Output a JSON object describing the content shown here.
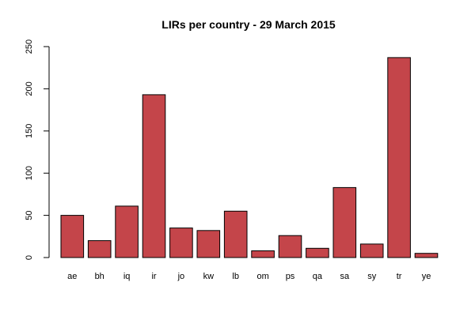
{
  "chart_data": {
    "type": "bar",
    "title": "LIRs per country - 29 March 2015",
    "xlabel": "",
    "ylabel": "",
    "categories": [
      "ae",
      "bh",
      "iq",
      "ir",
      "jo",
      "kw",
      "lb",
      "om",
      "ps",
      "qa",
      "sa",
      "sy",
      "tr",
      "ye"
    ],
    "values": [
      50,
      20,
      61,
      193,
      35,
      32,
      55,
      8,
      26,
      11,
      83,
      16,
      237,
      5
    ],
    "ylim": [
      0,
      250
    ],
    "yticks": [
      0,
      50,
      100,
      150,
      200,
      250
    ],
    "bar_color": "#c4454a",
    "grid": false,
    "legend": "none"
  }
}
